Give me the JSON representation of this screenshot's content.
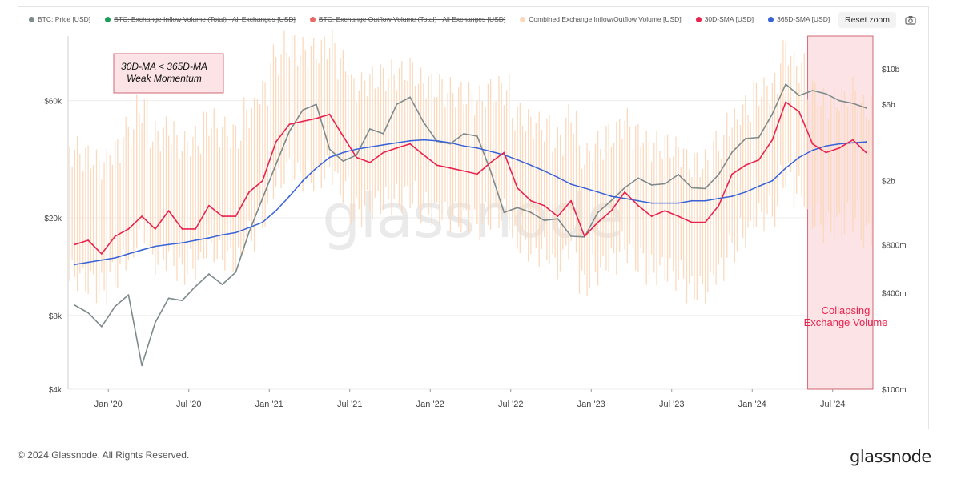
{
  "legend": [
    {
      "label": "BTC: Price [USD]",
      "color": "#7d8a8c",
      "disabled": false
    },
    {
      "label": "BTC: Exchange Inflow Volume (Total) - All Exchanges [USD]",
      "color": "#1b9e5a",
      "disabled": true
    },
    {
      "label": "BTC: Exchange Outflow Volume (Total) - All Exchanges [USD]",
      "color": "#e96868",
      "disabled": true
    },
    {
      "label": "Combined Exchange Inflow/Outflow Volume [USD]",
      "color": "#fbd9bd",
      "disabled": false
    },
    {
      "label": "30D-SMA [USD]",
      "color": "#e8234e",
      "disabled": false
    },
    {
      "label": "365D-SMA [USD]",
      "color": "#3762d8",
      "disabled": false
    }
  ],
  "toolbar": {
    "reset_zoom_label": "Reset zoom",
    "camera_icon": "camera-icon"
  },
  "watermark": "glassnode",
  "footer": {
    "copyright": "© 2024 Glassnode. All Rights Reserved.",
    "logo": "glassnode"
  },
  "annotations": {
    "momentum_line1": "30D-MA < 365D-MA",
    "momentum_line2": "Weak Momentum",
    "volume_line1": "Collapsing",
    "volume_line2": "Exchange Volume"
  },
  "colors": {
    "price": "#7d8a8c",
    "combined": "#fbd9bd",
    "sma30": "#e8234e",
    "sma365": "#3762d8",
    "highlight_fill": "#fbe3e6",
    "highlight_stroke": "#c9475a",
    "annotation_text": "#e8234e"
  },
  "chart_data": {
    "type": "line",
    "x_axis": {
      "ticks": [
        "Jan '20",
        "Jul '20",
        "Jan '21",
        "Jul '21",
        "Jan '22",
        "Jul '22",
        "Jan '23",
        "Jul '23",
        "Jan '24",
        "Jul '24"
      ],
      "range": [
        "2019-10",
        "2024-09"
      ]
    },
    "y_left": {
      "scale": "log",
      "ticks": [
        "$4k",
        "$8k",
        "$20k",
        "$60k"
      ],
      "tick_values": [
        4000,
        8000,
        20000,
        60000
      ],
      "range": [
        4000,
        110000
      ]
    },
    "y_right": {
      "scale": "log",
      "ticks": [
        "$100m",
        "$400m",
        "$800m",
        "$2b",
        "$6b",
        "$10b"
      ],
      "tick_values": [
        100000000,
        400000000,
        800000000,
        2000000000,
        6000000000,
        10000000000
      ],
      "range": [
        100000000,
        16000000000
      ]
    },
    "highlight_region": {
      "x_start": "2024-05",
      "x_end": "2024-09"
    },
    "series": [
      {
        "name": "BTC: Price [USD]",
        "axis": "left",
        "x": [
          "2019-10",
          "2019-11",
          "2019-12",
          "2020-01",
          "2020-02",
          "2020-03",
          "2020-04",
          "2020-05",
          "2020-06",
          "2020-07",
          "2020-08",
          "2020-09",
          "2020-10",
          "2020-11",
          "2020-12",
          "2021-01",
          "2021-02",
          "2021-03",
          "2021-04",
          "2021-05",
          "2021-06",
          "2021-07",
          "2021-08",
          "2021-09",
          "2021-10",
          "2021-11",
          "2021-12",
          "2022-01",
          "2022-02",
          "2022-03",
          "2022-04",
          "2022-05",
          "2022-06",
          "2022-07",
          "2022-08",
          "2022-09",
          "2022-10",
          "2022-11",
          "2022-12",
          "2023-01",
          "2023-02",
          "2023-03",
          "2023-04",
          "2023-05",
          "2023-06",
          "2023-07",
          "2023-08",
          "2023-09",
          "2023-10",
          "2023-11",
          "2023-12",
          "2024-01",
          "2024-02",
          "2024-03",
          "2024-04",
          "2024-05",
          "2024-06",
          "2024-07",
          "2024-08",
          "2024-09"
        ],
        "values": [
          8800,
          8200,
          7200,
          8700,
          9700,
          5000,
          7500,
          9400,
          9200,
          10500,
          11800,
          10700,
          12000,
          17500,
          24000,
          33000,
          45000,
          55000,
          58000,
          38000,
          34000,
          36000,
          46000,
          44000,
          58000,
          62000,
          49000,
          41000,
          40000,
          44000,
          43000,
          31000,
          21000,
          22000,
          21000,
          19500,
          19800,
          16800,
          16700,
          21000,
          23500,
          26500,
          29000,
          27200,
          27500,
          30000,
          26500,
          26300,
          30000,
          37000,
          42000,
          42500,
          53000,
          70000,
          63000,
          66000,
          64000,
          60000,
          58500,
          56000
        ]
      },
      {
        "name": "Combined Exchange Inflow/Outflow Volume [USD]",
        "axis": "right",
        "x": [
          "2019-10",
          "2019-11",
          "2019-12",
          "2020-01",
          "2020-02",
          "2020-03",
          "2020-04",
          "2020-05",
          "2020-06",
          "2020-07",
          "2020-08",
          "2020-09",
          "2020-10",
          "2020-11",
          "2020-12",
          "2021-01",
          "2021-02",
          "2021-03",
          "2021-04",
          "2021-05",
          "2021-06",
          "2021-07",
          "2021-08",
          "2021-09",
          "2021-10",
          "2021-11",
          "2021-12",
          "2022-01",
          "2022-02",
          "2022-03",
          "2022-04",
          "2022-05",
          "2022-06",
          "2022-07",
          "2022-08",
          "2022-09",
          "2022-10",
          "2022-11",
          "2022-12",
          "2023-01",
          "2023-02",
          "2023-03",
          "2023-04",
          "2023-05",
          "2023-06",
          "2023-07",
          "2023-08",
          "2023-09",
          "2023-10",
          "2023-11",
          "2023-12",
          "2024-01",
          "2024-02",
          "2024-03",
          "2024-04",
          "2024-05",
          "2024-06",
          "2024-07",
          "2024-08",
          "2024-09"
        ],
        "values": [
          1200000000,
          1100000000,
          1000000000,
          1200000000,
          1600000000,
          2200000000,
          1500000000,
          1600000000,
          1300000000,
          1400000000,
          1800000000,
          1600000000,
          1500000000,
          2100000000,
          2800000000,
          4500000000,
          5500000000,
          5000000000,
          5000000000,
          5500000000,
          4200000000,
          3000000000,
          3300000000,
          3500000000,
          3600000000,
          3800000000,
          3200000000,
          3000000000,
          2800000000,
          2700000000,
          2500000000,
          2800000000,
          2900000000,
          2000000000,
          1800000000,
          1700000000,
          1400000000,
          1900000000,
          1100000000,
          1300000000,
          1500000000,
          1800000000,
          1500000000,
          1300000000,
          1300000000,
          1200000000,
          1000000000,
          1000000000,
          1300000000,
          1800000000,
          2200000000,
          2800000000,
          3000000000,
          5000000000,
          4000000000,
          2800000000,
          2400000000,
          2500000000,
          2800000000,
          2200000000
        ]
      },
      {
        "name": "30D-SMA [USD]",
        "axis": "right",
        "x": [
          "2019-10",
          "2019-11",
          "2019-12",
          "2020-01",
          "2020-02",
          "2020-03",
          "2020-04",
          "2020-05",
          "2020-06",
          "2020-07",
          "2020-08",
          "2020-09",
          "2020-10",
          "2020-11",
          "2020-12",
          "2021-01",
          "2021-02",
          "2021-03",
          "2021-04",
          "2021-05",
          "2021-06",
          "2021-07",
          "2021-08",
          "2021-09",
          "2021-10",
          "2021-11",
          "2021-12",
          "2022-01",
          "2022-02",
          "2022-03",
          "2022-04",
          "2022-05",
          "2022-06",
          "2022-07",
          "2022-08",
          "2022-09",
          "2022-10",
          "2022-11",
          "2022-12",
          "2023-01",
          "2023-02",
          "2023-03",
          "2023-04",
          "2023-05",
          "2023-06",
          "2023-07",
          "2023-08",
          "2023-09",
          "2023-10",
          "2023-11",
          "2023-12",
          "2024-01",
          "2024-02",
          "2024-03",
          "2024-04",
          "2024-05",
          "2024-06",
          "2024-07",
          "2024-08",
          "2024-09"
        ],
        "values": [
          800000000,
          850000000,
          700000000,
          900000000,
          1000000000,
          1200000000,
          1000000000,
          1300000000,
          1000000000,
          1000000000,
          1400000000,
          1200000000,
          1200000000,
          1700000000,
          2000000000,
          3500000000,
          4500000000,
          4700000000,
          4900000000,
          5200000000,
          3800000000,
          2800000000,
          2600000000,
          3000000000,
          3200000000,
          3400000000,
          2900000000,
          2500000000,
          2400000000,
          2300000000,
          2200000000,
          2600000000,
          3000000000,
          1800000000,
          1500000000,
          1400000000,
          1200000000,
          1500000000,
          900000000,
          1100000000,
          1300000000,
          1700000000,
          1400000000,
          1200000000,
          1300000000,
          1200000000,
          1100000000,
          1100000000,
          1400000000,
          2200000000,
          2500000000,
          2700000000,
          3600000000,
          6200000000,
          5400000000,
          3400000000,
          3000000000,
          3200000000,
          3600000000,
          3000000000
        ]
      },
      {
        "name": "365D-SMA [USD]",
        "axis": "right",
        "x": [
          "2019-10",
          "2019-11",
          "2019-12",
          "2020-01",
          "2020-02",
          "2020-03",
          "2020-04",
          "2020-05",
          "2020-06",
          "2020-07",
          "2020-08",
          "2020-09",
          "2020-10",
          "2020-11",
          "2020-12",
          "2021-01",
          "2021-02",
          "2021-03",
          "2021-04",
          "2021-05",
          "2021-06",
          "2021-07",
          "2021-08",
          "2021-09",
          "2021-10",
          "2021-11",
          "2021-12",
          "2022-01",
          "2022-02",
          "2022-03",
          "2022-04",
          "2022-05",
          "2022-06",
          "2022-07",
          "2022-08",
          "2022-09",
          "2022-10",
          "2022-11",
          "2022-12",
          "2023-01",
          "2023-02",
          "2023-03",
          "2023-04",
          "2023-05",
          "2023-06",
          "2023-07",
          "2023-08",
          "2023-09",
          "2023-10",
          "2023-11",
          "2023-12",
          "2024-01",
          "2024-02",
          "2024-03",
          "2024-04",
          "2024-05",
          "2024-06",
          "2024-07",
          "2024-08",
          "2024-09"
        ],
        "values": [
          600000000,
          620000000,
          640000000,
          660000000,
          700000000,
          740000000,
          780000000,
          800000000,
          820000000,
          850000000,
          880000000,
          920000000,
          950000000,
          1020000000,
          1100000000,
          1300000000,
          1600000000,
          2000000000,
          2400000000,
          2800000000,
          3000000000,
          3150000000,
          3250000000,
          3350000000,
          3450000000,
          3550000000,
          3600000000,
          3550000000,
          3450000000,
          3300000000,
          3200000000,
          3050000000,
          2900000000,
          2700000000,
          2500000000,
          2300000000,
          2100000000,
          1900000000,
          1800000000,
          1700000000,
          1600000000,
          1550000000,
          1500000000,
          1450000000,
          1450000000,
          1450000000,
          1500000000,
          1500000000,
          1550000000,
          1600000000,
          1700000000,
          1850000000,
          2000000000,
          2400000000,
          2800000000,
          3100000000,
          3300000000,
          3400000000,
          3450000000,
          3500000000
        ]
      }
    ]
  }
}
